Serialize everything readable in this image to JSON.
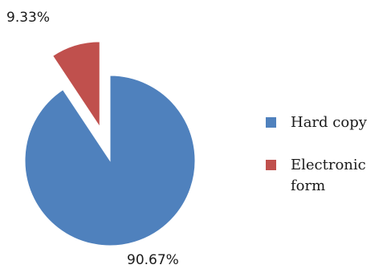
{
  "chart_data": {
    "type": "pie",
    "title": "",
    "categories": [
      "Hard copy",
      "Electronic form"
    ],
    "values": [
      90.67,
      9.33
    ],
    "data_labels": [
      "90.67%",
      "9.33%"
    ],
    "colors": [
      "#4F81BD",
      "#C0504D"
    ],
    "exploded": [
      false,
      true
    ],
    "start_angle": "12 o'clock, clockwise",
    "legend": {
      "position": "right",
      "entries": [
        "Hard copy",
        "Electronic form"
      ]
    }
  }
}
